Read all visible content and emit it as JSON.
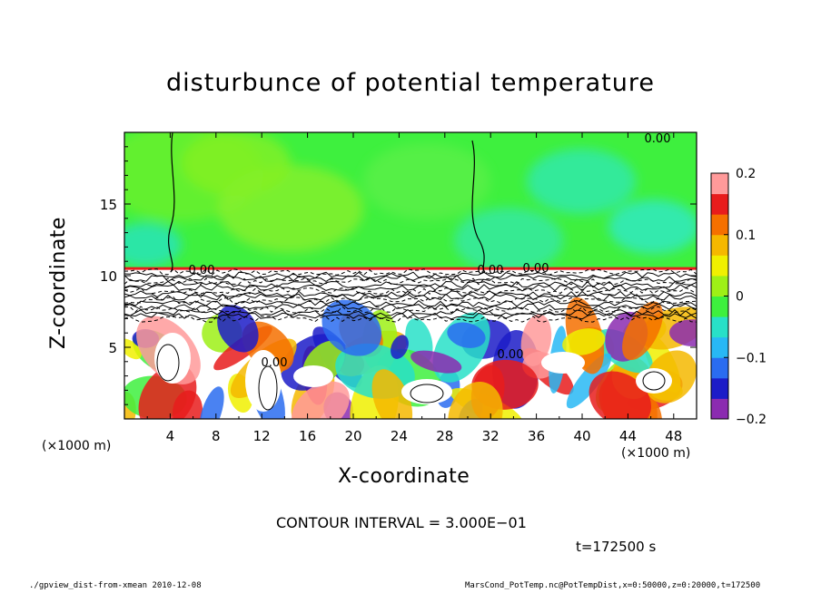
{
  "chart_data": {
    "type": "heatmap",
    "title": "disturbunce of potential temperature",
    "xlabel": "X-coordinate",
    "ylabel": "Z-coordinate",
    "x_unit_label": "(×1000 m)",
    "xlim": [
      0,
      50
    ],
    "ylim": [
      0,
      20
    ],
    "x_ticks": [
      4,
      8,
      12,
      16,
      20,
      24,
      28,
      32,
      36,
      40,
      44,
      48
    ],
    "x_tick_labels": [
      "4",
      "8",
      "12",
      "16",
      "20",
      "24",
      "28",
      "32",
      "36",
      "40",
      "44",
      "48"
    ],
    "y_ticks": [
      5,
      10,
      15
    ],
    "y_tick_labels": [
      "5",
      "10",
      "15"
    ],
    "colorbar": {
      "range": [
        -0.2,
        0.2
      ],
      "ticks": [
        0.2,
        0.1,
        0,
        -0.1,
        -0.2
      ],
      "tick_labels": [
        "0.2",
        "0.1",
        "0",
        "−0.1",
        "−0.2"
      ],
      "colors": [
        "#8b2bb0",
        "#1c1cc8",
        "#2a6cf0",
        "#28b8f5",
        "#28e0c8",
        "#3ef03e",
        "#9ef016",
        "#f0f000",
        "#f5b800",
        "#f57000",
        "#e81c1c",
        "#ff9a9a"
      ]
    },
    "contour_labels": [
      "0.00",
      "0.00",
      "0.00",
      "0.00",
      "0.00",
      "0.00"
    ],
    "contour_interval": "CONTOUR INTERVAL = 3.000E−01",
    "time_label": "t=172500 s"
  },
  "footer": {
    "left": "./gpview_dist-from-xmean  2010-12-08",
    "right": "MarsCond_PotTemp.nc@PotTempDist,x=0:50000,z=0:20000,t=172500"
  }
}
